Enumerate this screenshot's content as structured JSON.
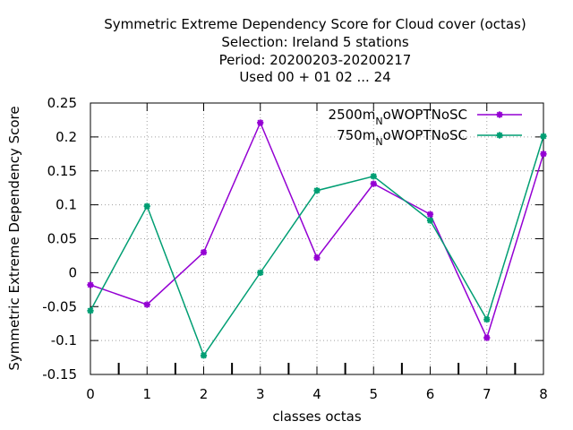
{
  "chart_data": {
    "type": "line",
    "title_lines": [
      "Symmetric Extreme Dependency Score  for Cloud cover (octas)",
      "Selection: Ireland      5 stations",
      "Period: 20200203-20200217",
      "Used  00 + 01 02 ... 24"
    ],
    "xlabel": "classes octas",
    "ylabel": "Symmetric Extreme Dependency Score",
    "xlim": [
      0,
      8
    ],
    "ylim": [
      -0.15,
      0.25
    ],
    "x_ticks": [
      "0",
      "1",
      "2",
      "3",
      "4",
      "5",
      "6",
      "7",
      "8"
    ],
    "y_ticks": [
      "-0.15",
      "-0.1",
      "-0.05",
      "0",
      "0.05",
      "0.1",
      "0.15",
      "0.2",
      "0.25"
    ],
    "grid": true,
    "legend_position": "top-right",
    "x": [
      0,
      1,
      2,
      3,
      4,
      5,
      6,
      7,
      8
    ],
    "series": [
      {
        "name_main": "2500m",
        "name_sub": "N",
        "name_rest": "oWOPTNoSC",
        "color": "#9400d3",
        "values": [
          -0.018,
          -0.047,
          0.03,
          0.221,
          0.022,
          0.131,
          0.086,
          -0.096,
          0.175
        ]
      },
      {
        "name_main": "750m",
        "name_sub": "N",
        "name_rest": "oWOPTNoSC",
        "color": "#009e73",
        "values": [
          -0.056,
          0.098,
          -0.122,
          0.0,
          0.121,
          0.142,
          0.077,
          -0.069,
          0.201
        ]
      }
    ]
  }
}
